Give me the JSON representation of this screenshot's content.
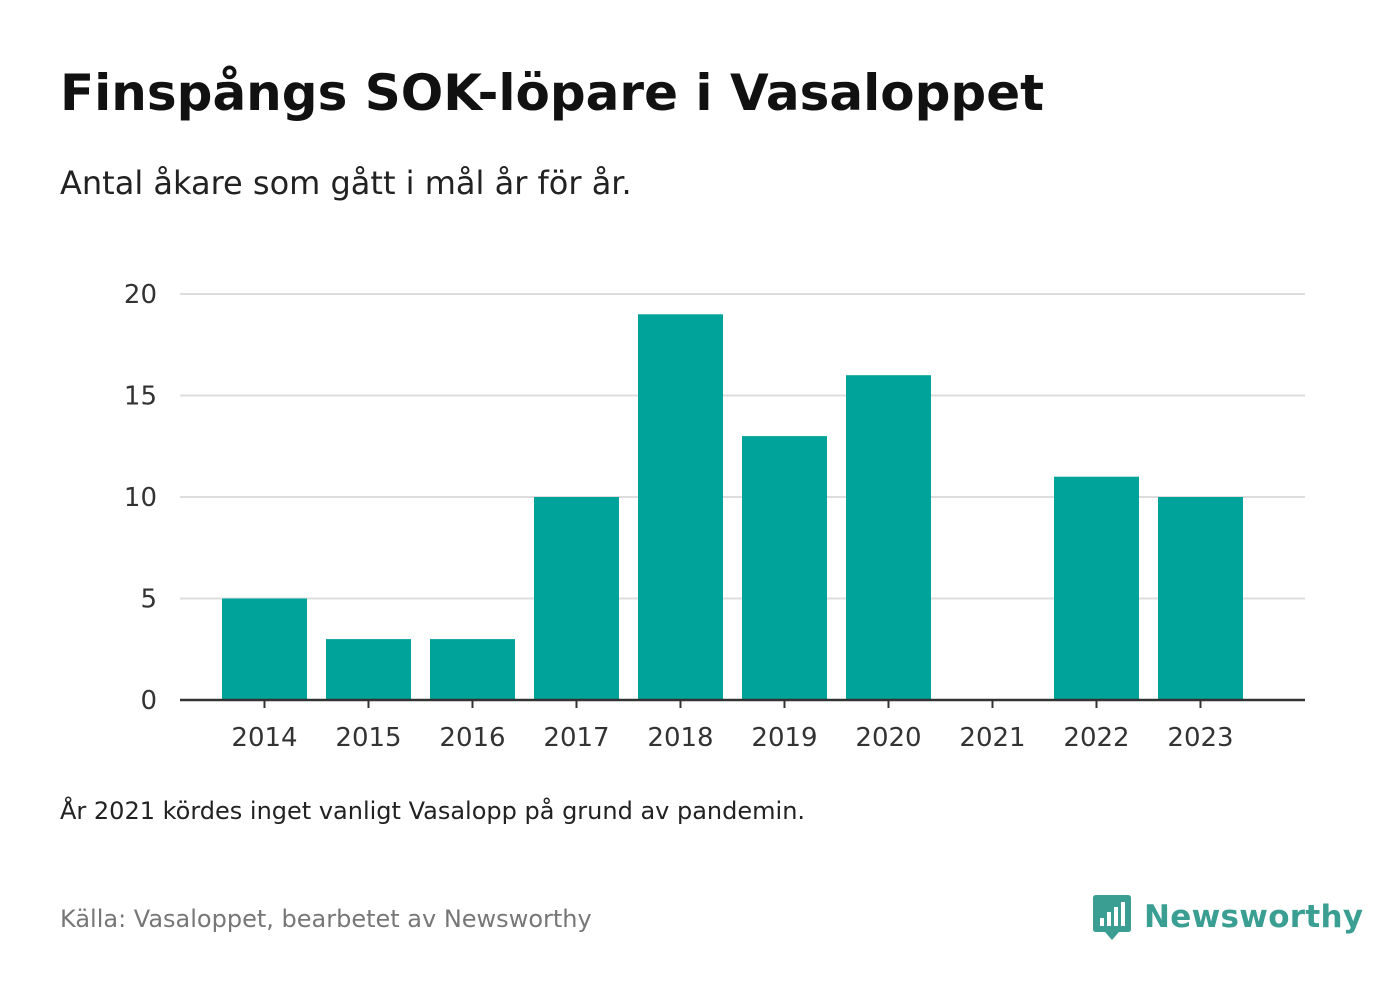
{
  "title": "Finspångs SOK-löpare i Vasaloppet",
  "subtitle": "Antal åkare som gått i mål år för år.",
  "note": "År 2021 kördes inget vanligt Vasalopp på grund av pandemin.",
  "source": "Källa: Vasaloppet, bearbetet av Newsworthy",
  "brand": {
    "name": "Newsworthy",
    "color": "#3a9e92",
    "icon": "newsworthy-logo-icon"
  },
  "colors": {
    "bar": "#00a39a",
    "grid": "#dddddd",
    "axis": "#333333"
  },
  "chart_data": {
    "type": "bar",
    "title": "Finspångs SOK-löpare i Vasaloppet",
    "subtitle": "Antal åkare som gått i mål år för år.",
    "categories": [
      "2014",
      "2015",
      "2016",
      "2017",
      "2018",
      "2019",
      "2020",
      "2021",
      "2022",
      "2023"
    ],
    "values": [
      5,
      3,
      3,
      10,
      19,
      13,
      16,
      0,
      11,
      10
    ],
    "yticks": [
      0,
      5,
      10,
      15,
      20
    ],
    "ylim": [
      0,
      20
    ],
    "grid": true,
    "legend": "none"
  }
}
